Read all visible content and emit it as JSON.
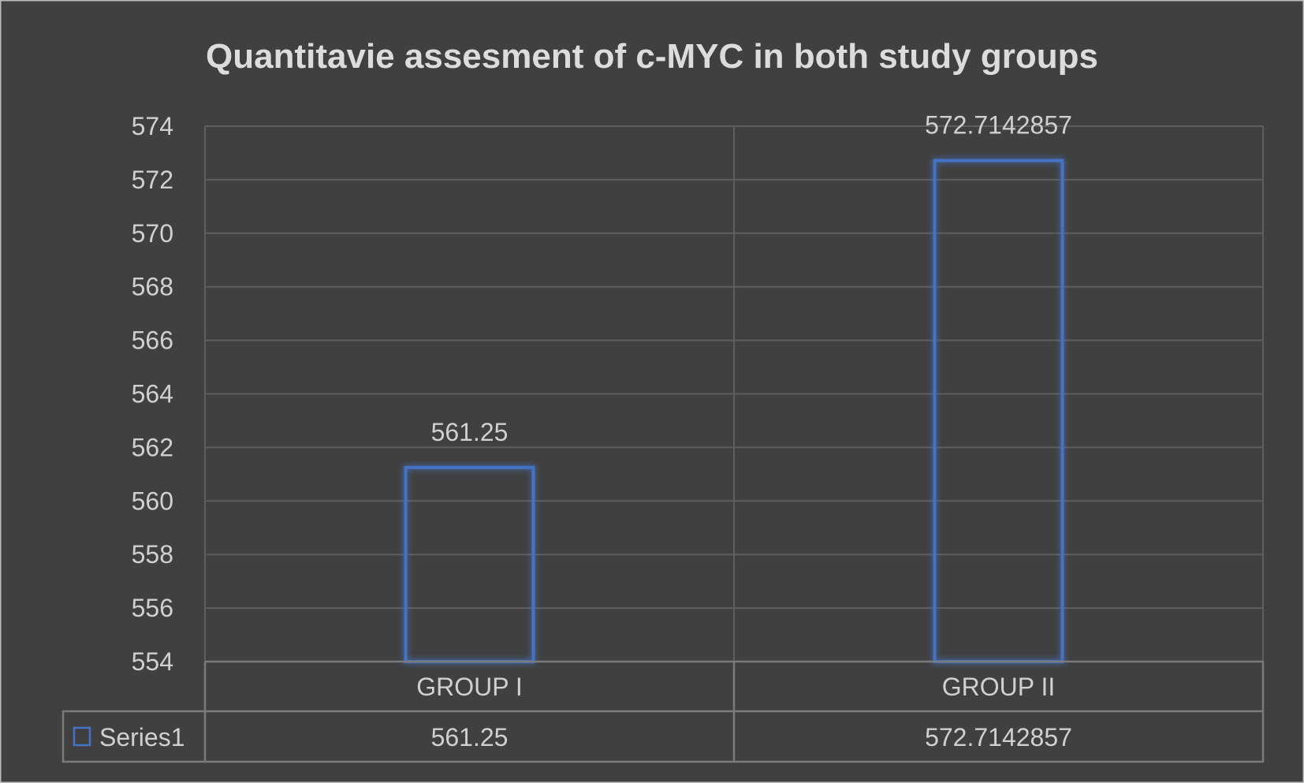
{
  "chart_data": {
    "type": "bar",
    "title": "Quantitavie assesment of c-MYC in both study groups",
    "categories": [
      "GROUP I",
      "GROUP II"
    ],
    "series": [
      {
        "name": "Series1",
        "values": [
          561.25,
          572.7142857
        ],
        "labels": [
          "561.25",
          "572.7142857"
        ]
      }
    ],
    "ylim": [
      554,
      574
    ],
    "yticks": [
      554,
      556,
      558,
      560,
      562,
      564,
      566,
      568,
      570,
      572,
      574
    ],
    "xlabel": "",
    "ylabel": "",
    "grid": true,
    "legend": "data-table-bottom-left",
    "colors": {
      "background": "#404040",
      "bar_outline": "#4472c4",
      "grid": "#5a5a5a",
      "text": "#d0d0d0"
    }
  }
}
